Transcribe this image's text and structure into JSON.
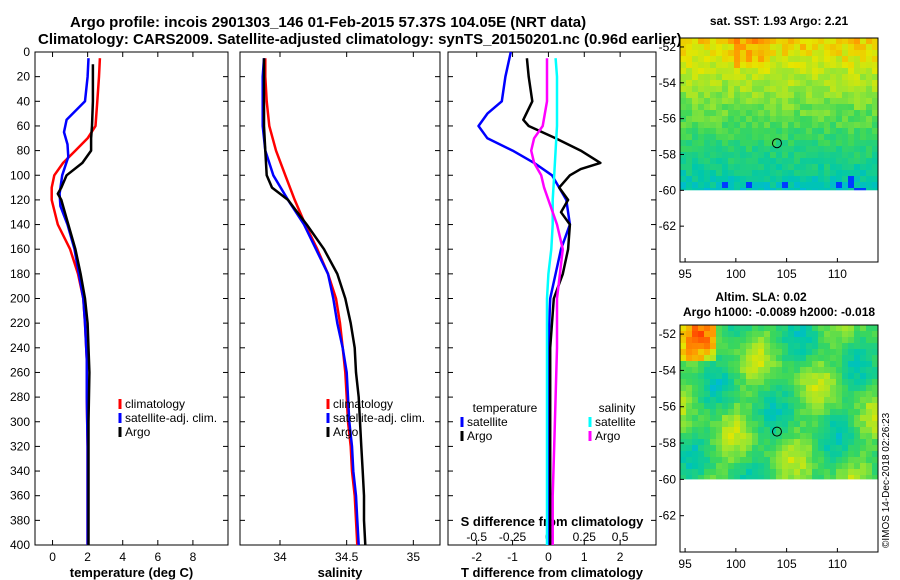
{
  "title_line1": "Argo profile: incois 2901303_146 01-Feb-2015 57.37S 104.05E (NRT data)",
  "title_line2": "Climatology: CARS2009. Satellite-adjusted climatology: synTS_20150201.nc (0.96d earlier)",
  "timestamp": "©IMOS 14-Dec-2018 02:26:23",
  "colors": {
    "climatology": "#ff0000",
    "satellite": "#0000ff",
    "argo": "#000000",
    "sat_salinity": "#00ffff",
    "argo_salinity": "#ff00ff"
  },
  "chart_data": [
    {
      "type": "line",
      "id": "temperature",
      "xlabel": "temperature (deg C)",
      "ylabel": "",
      "xlim": [
        -1,
        10
      ],
      "ylim": [
        400,
        0
      ],
      "xticks": [
        0,
        2,
        4,
        6,
        8
      ],
      "xtick_labels": [
        "0",
        "2",
        "4",
        "6",
        "8"
      ],
      "yticks": [
        0,
        20,
        40,
        60,
        80,
        100,
        120,
        140,
        160,
        180,
        200,
        220,
        240,
        260,
        280,
        300,
        320,
        340,
        360,
        380,
        400
      ],
      "legend": [
        {
          "name": "climatology",
          "color": "#ff0000"
        },
        {
          "name": "satellite-adj. clim.",
          "color": "#0000ff"
        },
        {
          "name": "Argo",
          "color": "#000000"
        }
      ],
      "series": [
        {
          "name": "climatology",
          "color": "#ff0000",
          "depth": [
            5,
            20,
            40,
            60,
            70,
            80,
            90,
            100,
            110,
            120,
            140,
            160,
            180,
            200,
            220,
            250,
            280,
            320,
            360,
            400
          ],
          "values": [
            2.7,
            2.65,
            2.55,
            2.45,
            2.0,
            1.3,
            0.6,
            0.1,
            -0.05,
            -0.05,
            0.3,
            1.0,
            1.45,
            1.75,
            1.85,
            1.95,
            1.95,
            2.0,
            2.0,
            2.0
          ]
        },
        {
          "name": "satellite-adj. clim.",
          "color": "#0000ff",
          "depth": [
            5,
            20,
            40,
            55,
            65,
            75,
            85,
            100,
            115,
            125,
            140,
            160,
            180,
            200,
            220,
            250,
            280,
            320,
            360,
            400
          ],
          "values": [
            2.05,
            2.0,
            1.85,
            0.8,
            0.65,
            0.85,
            0.9,
            0.55,
            0.4,
            0.45,
            0.85,
            1.25,
            1.5,
            1.75,
            1.85,
            1.95,
            1.95,
            2.0,
            2.0,
            2.0
          ]
        },
        {
          "name": "Argo",
          "color": "#000000",
          "depth": [
            10,
            20,
            40,
            60,
            70,
            80,
            90,
            100,
            110,
            115,
            120,
            130,
            140,
            160,
            180,
            200,
            220,
            260,
            300,
            340,
            380,
            400
          ],
          "values": [
            2.3,
            2.3,
            2.3,
            2.25,
            2.2,
            2.2,
            1.7,
            0.8,
            0.5,
            0.3,
            0.5,
            0.7,
            0.9,
            1.3,
            1.6,
            1.85,
            2.0,
            2.1,
            2.05,
            2.05,
            2.05,
            2.05
          ]
        }
      ]
    },
    {
      "type": "line",
      "id": "salinity",
      "xlabel": "salinity",
      "ylabel": "",
      "xlim": [
        33.7,
        35.2
      ],
      "ylim": [
        400,
        0
      ],
      "xticks": [
        34,
        34.5,
        35
      ],
      "xtick_labels": [
        "34",
        "34.5",
        "35"
      ],
      "yticks": [
        0,
        20,
        40,
        60,
        80,
        100,
        120,
        140,
        160,
        180,
        200,
        220,
        240,
        260,
        280,
        300,
        320,
        340,
        360,
        380,
        400
      ],
      "legend": [
        {
          "name": "climatology",
          "color": "#ff0000"
        },
        {
          "name": "satellite-adj. clim.",
          "color": "#0000ff"
        },
        {
          "name": "Argo",
          "color": "#000000"
        }
      ],
      "series": [
        {
          "name": "climatology",
          "color": "#ff0000",
          "depth": [
            5,
            20,
            40,
            60,
            80,
            100,
            120,
            140,
            160,
            180,
            200,
            220,
            240,
            260,
            280,
            300,
            320,
            340,
            360,
            380,
            400
          ],
          "values": [
            33.89,
            33.89,
            33.9,
            33.92,
            33.97,
            34.04,
            34.11,
            34.19,
            34.28,
            34.36,
            34.42,
            34.45,
            34.47,
            34.49,
            34.5,
            34.51,
            34.53,
            34.54,
            34.56,
            34.57,
            34.58
          ]
        },
        {
          "name": "satellite-adj. clim.",
          "color": "#0000ff",
          "depth": [
            5,
            20,
            40,
            60,
            80,
            100,
            120,
            140,
            160,
            180,
            200,
            220,
            240,
            260,
            280,
            300,
            320,
            340,
            360,
            380,
            400
          ],
          "values": [
            33.88,
            33.87,
            33.87,
            33.87,
            33.89,
            33.95,
            34.06,
            34.18,
            34.27,
            34.36,
            34.4,
            34.43,
            34.47,
            34.5,
            34.51,
            34.52,
            34.54,
            34.55,
            34.57,
            34.58,
            34.59
          ]
        },
        {
          "name": "Argo",
          "color": "#000000",
          "depth": [
            5,
            20,
            40,
            60,
            80,
            100,
            110,
            120,
            130,
            140,
            160,
            180,
            200,
            220,
            240,
            260,
            280,
            300,
            320,
            340,
            360,
            380,
            400
          ],
          "values": [
            33.88,
            33.88,
            33.88,
            33.88,
            33.89,
            33.9,
            33.94,
            34.06,
            34.13,
            34.2,
            34.33,
            34.43,
            34.49,
            34.53,
            34.56,
            34.57,
            34.59,
            34.6,
            34.61,
            34.62,
            34.63,
            34.63,
            34.64
          ]
        }
      ]
    },
    {
      "type": "line",
      "id": "difference",
      "xlabel": "T difference from climatology",
      "xlabel_top": "S difference from climatology",
      "xlim": [
        -2.8,
        3.0
      ],
      "ylim": [
        400,
        0
      ],
      "xticks": [
        -2,
        -1,
        0,
        1,
        2
      ],
      "xtick_labels": [
        "-2",
        "-1",
        "0",
        "1",
        "2"
      ],
      "s_xlim": [
        -0.7,
        0.75
      ],
      "s_xticks": [
        -0.5,
        -0.25,
        0,
        0.25,
        0.5
      ],
      "s_xtick_labels": [
        "-0.5",
        "-0.25",
        "0",
        "0.25",
        "0.5"
      ],
      "yticks": [
        0,
        20,
        40,
        60,
        80,
        100,
        120,
        140,
        160,
        180,
        200,
        220,
        240,
        260,
        280,
        300,
        320,
        340,
        360,
        380,
        400
      ],
      "legend_temperature_title": "temperature",
      "legend_salinity_title": "salinity",
      "legend": [
        {
          "name": "satellite",
          "color": "#0000ff",
          "group": "temperature"
        },
        {
          "name": "Argo",
          "color": "#000000",
          "group": "temperature"
        },
        {
          "name": "satellite",
          "color": "#00ffff",
          "group": "salinity"
        },
        {
          "name": "Argo",
          "color": "#ff00ff",
          "group": "salinity"
        }
      ],
      "series": [
        {
          "name": "T satellite",
          "color": "#0000ff",
          "axis": "T",
          "depth": [
            0,
            20,
            40,
            50,
            60,
            70,
            80,
            90,
            100,
            120,
            140,
            160,
            200,
            240,
            280,
            320,
            360,
            400
          ],
          "values": [
            -1.05,
            -1.2,
            -1.3,
            -1.7,
            -1.95,
            -1.7,
            -1.0,
            -0.4,
            0.1,
            0.5,
            0.6,
            0.35,
            0.05,
            0.0,
            0.0,
            0.0,
            0.0,
            0.0
          ]
        },
        {
          "name": "T Argo",
          "color": "#000000",
          "axis": "T",
          "depth": [
            5,
            20,
            40,
            55,
            60,
            70,
            80,
            90,
            95,
            100,
            110,
            120,
            130,
            140,
            160,
            180,
            200,
            240,
            280,
            320,
            360,
            400
          ],
          "values": [
            -0.6,
            -0.55,
            -0.45,
            -0.7,
            -0.55,
            0.2,
            0.9,
            1.45,
            0.9,
            0.6,
            0.3,
            0.55,
            0.35,
            0.6,
            0.55,
            0.4,
            0.15,
            0.05,
            0.05,
            0.05,
            0.05,
            0.05
          ]
        },
        {
          "name": "S satellite",
          "color": "#00ffff",
          "axis": "S",
          "depth": [
            5,
            20,
            40,
            60,
            80,
            100,
            120,
            140,
            160,
            180,
            200,
            240,
            280,
            320,
            360,
            400
          ],
          "values": [
            0.05,
            0.06,
            0.06,
            0.06,
            0.05,
            0.04,
            0.03,
            0.03,
            0.02,
            0.0,
            -0.01,
            -0.01,
            -0.01,
            -0.01,
            -0.01,
            -0.01
          ]
        },
        {
          "name": "S Argo",
          "color": "#ff00ff",
          "axis": "S",
          "depth": [
            5,
            20,
            40,
            60,
            70,
            80,
            90,
            100,
            110,
            120,
            140,
            160,
            180,
            200,
            240,
            280,
            320,
            360,
            400
          ],
          "values": [
            -0.01,
            -0.01,
            -0.01,
            -0.04,
            -0.1,
            -0.12,
            -0.1,
            -0.05,
            -0.03,
            0.0,
            0.06,
            0.1,
            0.08,
            0.06,
            0.06,
            0.05,
            0.04,
            0.03,
            0.03
          ]
        }
      ]
    },
    {
      "type": "heatmap",
      "id": "sst_map",
      "title": "sat. SST: 1.93 Argo: 2.21",
      "xlim": [
        94.5,
        114
      ],
      "ylim": [
        -64,
        -51.5
      ],
      "xticks": [
        95,
        100,
        105,
        110
      ],
      "xtick_labels": [
        "95",
        "100",
        "105",
        "110"
      ],
      "yticks": [
        -52,
        -54,
        -56,
        -58,
        -60,
        -62
      ],
      "ytick_labels": [
        "-52",
        "-54",
        "-56",
        "-58",
        "-60",
        "-62"
      ],
      "data_lat_min": -60,
      "marker": {
        "lon": 104.05,
        "lat": -57.37
      }
    },
    {
      "type": "heatmap",
      "id": "sla_map",
      "title": "Altim. SLA: 0.02",
      "subtitle": "Argo h1000: -0.0089 h2000: -0.018",
      "xlim": [
        94.5,
        114
      ],
      "ylim": [
        -64,
        -51.5
      ],
      "xticks": [
        95,
        100,
        105,
        110
      ],
      "xtick_labels": [
        "95",
        "100",
        "105",
        "110"
      ],
      "yticks": [
        -52,
        -54,
        -56,
        -58,
        -60,
        -62
      ],
      "ytick_labels": [
        "-52",
        "-54",
        "-56",
        "-58",
        "-60",
        "-62"
      ],
      "data_lat_min": -60,
      "marker": {
        "lon": 104.05,
        "lat": -57.37
      }
    }
  ]
}
